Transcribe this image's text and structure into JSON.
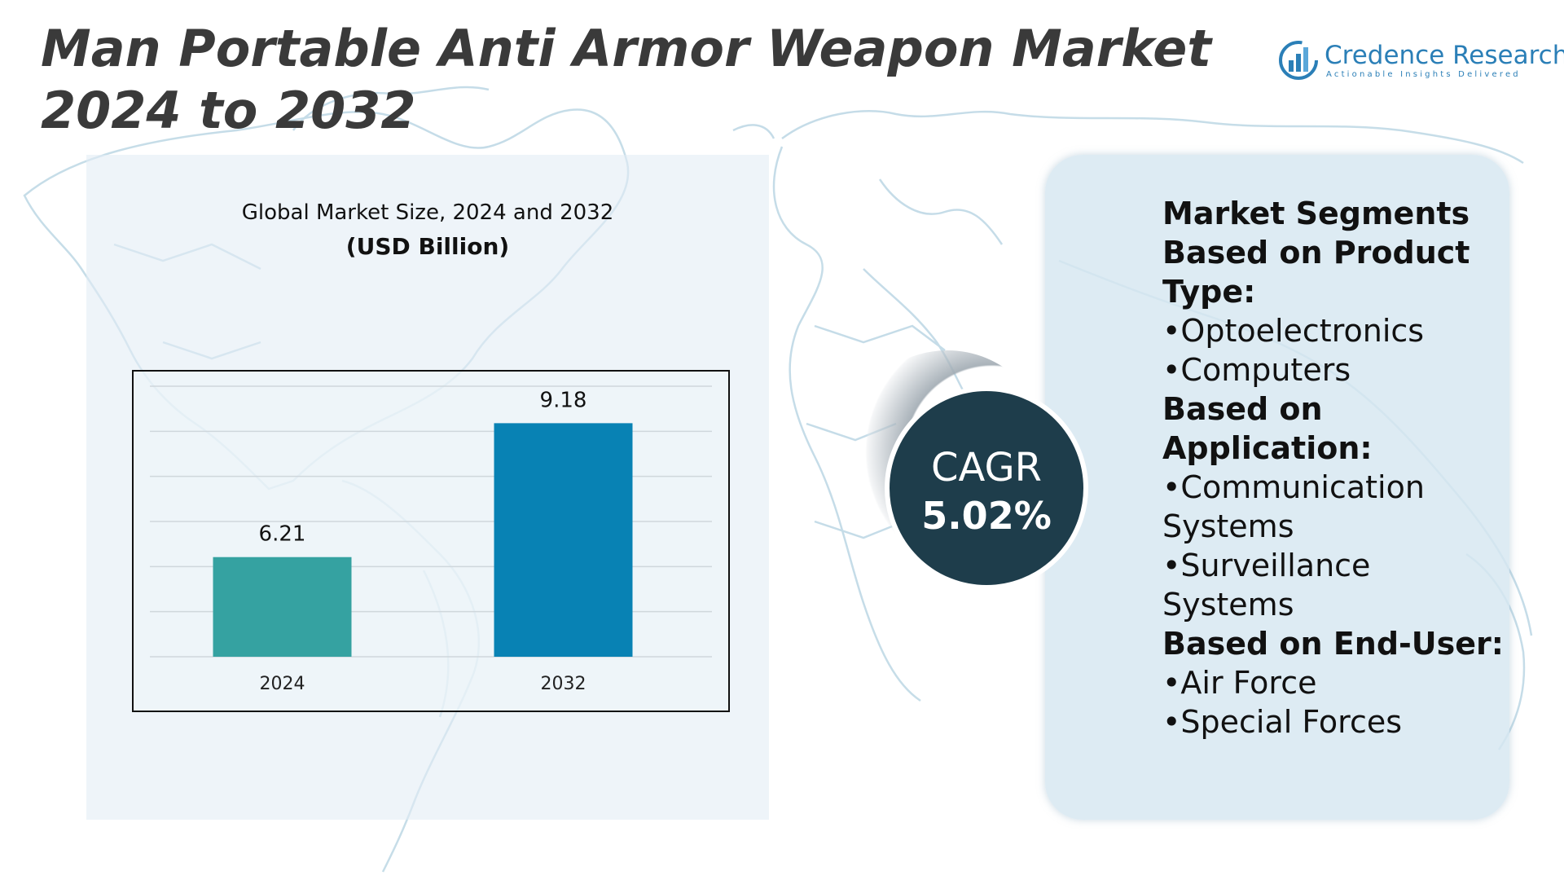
{
  "title": "Man Portable Anti Armor Weapon Market 2024 to 2032",
  "logo": {
    "name": "Credence Research",
    "tagline": "Actionable Insights Delivered",
    "colors": {
      "primary": "#2b7fb7",
      "accent": "#5aa7d9"
    }
  },
  "chart_data": {
    "type": "bar",
    "title": "Global Market Size, 2024 and 2032",
    "subtitle": "(USD Billion)",
    "categories": [
      "2024",
      "2032"
    ],
    "values": [
      6.21,
      9.18
    ],
    "value_labels": [
      "6.21",
      "9.18"
    ],
    "colors": [
      "#35a2a1",
      "#0882b4"
    ],
    "ylim": [
      4,
      10
    ],
    "grid": true,
    "legend": "none"
  },
  "cagr": {
    "label": "CAGR",
    "value": "5.02%"
  },
  "segments": {
    "heading": "Market Segments",
    "groups": [
      {
        "heading": "Based on Product Type:",
        "items": [
          "•Optoelectronics",
          "•Computers"
        ]
      },
      {
        "heading": "Based on Application:",
        "items": [
          "•Communication Systems",
          "•Surveillance Systems"
        ]
      },
      {
        "heading": "Based on End-User:",
        "items": [
          "•Air Force",
          "•Special Forces"
        ]
      }
    ]
  },
  "colors": {
    "title_text": "#3a3a3a",
    "cagr_circle": "#1e3d4b",
    "segments_panel": "#d6e6f0",
    "map_lines": "#bdd6e3"
  }
}
